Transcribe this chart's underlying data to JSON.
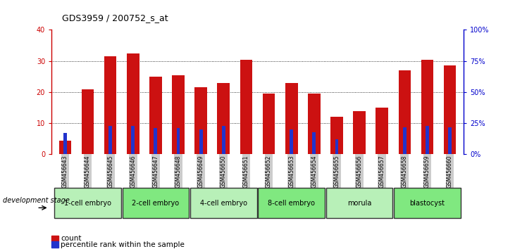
{
  "title": "GDS3959 / 200752_s_at",
  "samples": [
    "GSM456643",
    "GSM456644",
    "GSM456645",
    "GSM456646",
    "GSM456647",
    "GSM456648",
    "GSM456649",
    "GSM456650",
    "GSM456651",
    "GSM456652",
    "GSM456653",
    "GSM456654",
    "GSM456655",
    "GSM456656",
    "GSM456657",
    "GSM456658",
    "GSM456659",
    "GSM456660"
  ],
  "count_values": [
    4.5,
    21,
    31.5,
    32.5,
    25,
    25.5,
    21.5,
    23,
    30.5,
    19.5,
    23,
    19.5,
    12,
    14,
    15,
    27,
    30.5,
    28.5
  ],
  "percentile_values": [
    17,
    0,
    23,
    23,
    21,
    21,
    20,
    23,
    0,
    0,
    20,
    18,
    12,
    0,
    0,
    22,
    23,
    22
  ],
  "stage_groups": [
    {
      "label": "1-cell embryo",
      "start": 0,
      "end": 3,
      "color": "#b8f0b8"
    },
    {
      "label": "2-cell embryo",
      "start": 3,
      "end": 6,
      "color": "#80e880"
    },
    {
      "label": "4-cell embryo",
      "start": 6,
      "end": 9,
      "color": "#b8f0b8"
    },
    {
      "label": "8-cell embryo",
      "start": 9,
      "end": 12,
      "color": "#80e880"
    },
    {
      "label": "morula",
      "start": 12,
      "end": 15,
      "color": "#b8f0b8"
    },
    {
      "label": "blastocyst",
      "start": 15,
      "end": 18,
      "color": "#80e880"
    }
  ],
  "bar_color": "#cc1111",
  "percentile_color": "#2233cc",
  "ylim_left": [
    0,
    40
  ],
  "ylim_right": [
    0,
    100
  ],
  "yticks_left": [
    0,
    10,
    20,
    30,
    40
  ],
  "yticks_right": [
    0,
    25,
    50,
    75,
    100
  ],
  "ytick_labels_right": [
    "0%",
    "25%",
    "50%",
    "75%",
    "100%"
  ],
  "left_axis_color": "#cc0000",
  "right_axis_color": "#0000cc",
  "bg_color": "#ffffff",
  "tick_bg_color": "#cccccc",
  "legend_count_label": "count",
  "legend_percentile_label": "percentile rank within the sample",
  "development_stage_label": "development stage"
}
